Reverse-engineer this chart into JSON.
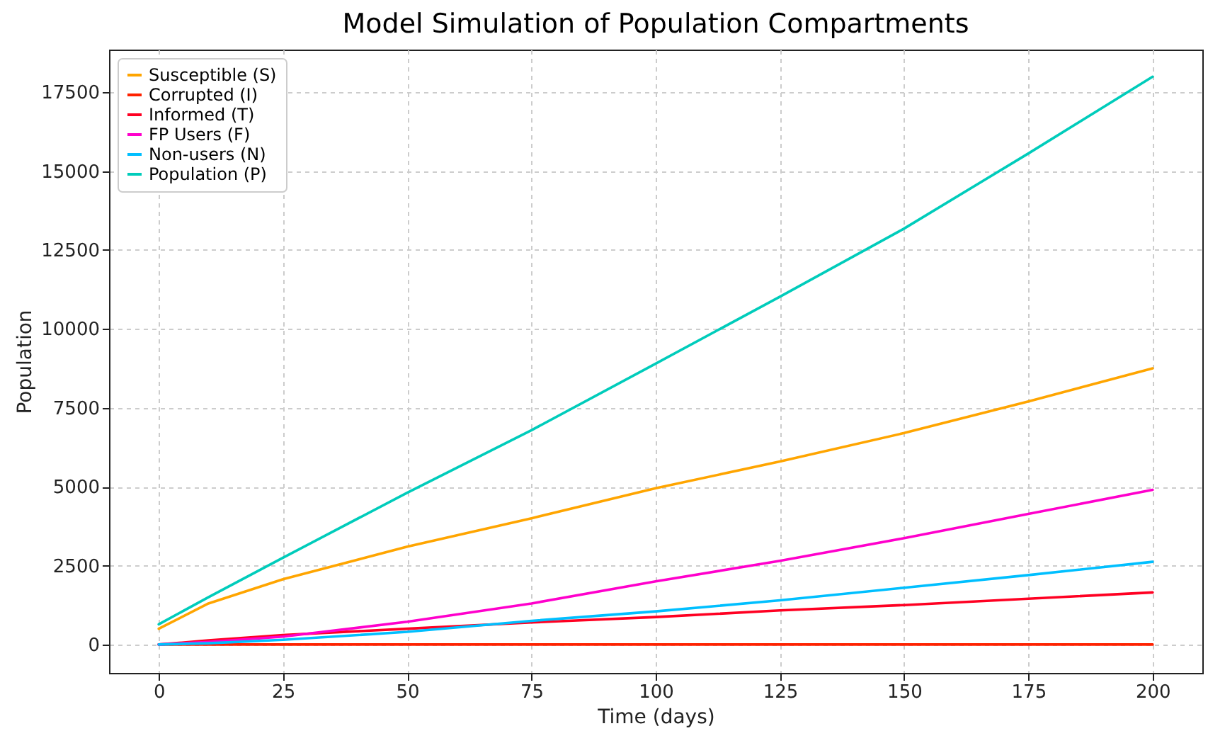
{
  "chart_data": {
    "type": "line",
    "title": "Model Simulation of Population Compartments",
    "xlabel": "Time (days)",
    "ylabel": "Population",
    "x": [
      0,
      10,
      25,
      50,
      75,
      100,
      125,
      150,
      175,
      200
    ],
    "series": [
      {
        "name": "Susceptible (S)",
        "color": "#ffa500",
        "values": [
          500,
          1300,
          2070,
          3100,
          4000,
          4950,
          5800,
          6700,
          7700,
          8750
        ]
      },
      {
        "name": "Corrupted (I)",
        "color": "#ff2200",
        "values": [
          0,
          0,
          0,
          0,
          0,
          0,
          0,
          0,
          0,
          0
        ]
      },
      {
        "name": "Informed (T)",
        "color": "#ff0022",
        "values": [
          0,
          130,
          300,
          500,
          700,
          870,
          1080,
          1250,
          1450,
          1650
        ]
      },
      {
        "name": "FP Users (F)",
        "color": "#ff00cc",
        "values": [
          0,
          80,
          250,
          720,
          1300,
          2000,
          2650,
          3370,
          4140,
          4900
        ]
      },
      {
        "name": "Non-users (N)",
        "color": "#00bfff",
        "values": [
          0,
          40,
          150,
          400,
          750,
          1050,
          1400,
          1800,
          2200,
          2620
        ]
      },
      {
        "name": "Population (P)",
        "color": "#00ccbb",
        "values": [
          640,
          1500,
          2750,
          4810,
          6790,
          8900,
          11020,
          13180,
          15560,
          17990
        ]
      }
    ],
    "xlim": [
      -10,
      210
    ],
    "xticks": [
      0,
      25,
      50,
      75,
      100,
      125,
      150,
      175,
      200
    ],
    "ylim": [
      -900,
      18850
    ],
    "yticks": [
      0,
      2500,
      5000,
      7500,
      10000,
      12500,
      15000,
      17500
    ],
    "grid": true,
    "legend": "top left",
    "marker": "none",
    "line_style": "solid"
  }
}
